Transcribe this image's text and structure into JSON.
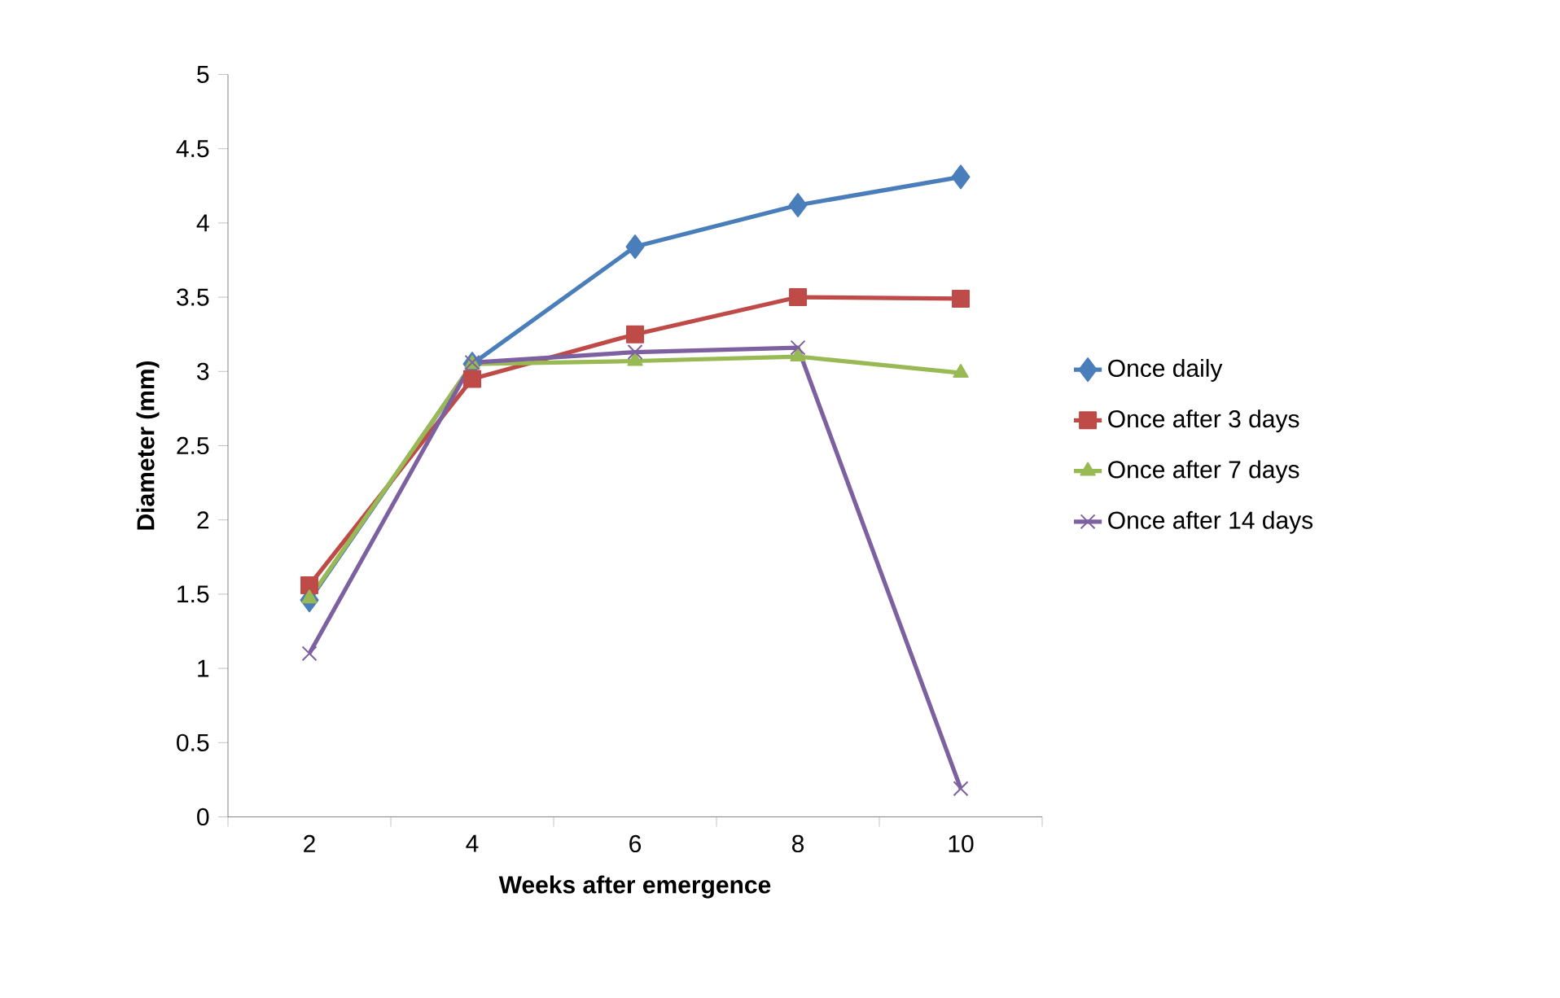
{
  "chart_data": {
    "type": "line",
    "xlabel": "Weeks after emergence",
    "ylabel": "Diameter (mm)",
    "categories": [
      "2",
      "4",
      "6",
      "8",
      "10"
    ],
    "ylim": [
      0,
      5
    ],
    "yticks": [
      0,
      0.5,
      1,
      1.5,
      2,
      2.5,
      3,
      3.5,
      4,
      4.5,
      5
    ],
    "legend": "right",
    "grid": false,
    "series": [
      {
        "name": "Once daily",
        "color": "#4a7ebb",
        "marker": "diamond",
        "values": [
          1.46,
          3.05,
          3.84,
          4.12,
          4.31
        ]
      },
      {
        "name": "Once after 3 days",
        "color": "#be4b48",
        "marker": "square",
        "values": [
          1.56,
          2.95,
          3.25,
          3.5,
          3.49
        ]
      },
      {
        "name": "Once after 7 days",
        "color": "#98b954",
        "marker": "triangle",
        "values": [
          1.47,
          3.05,
          3.07,
          3.1,
          2.99
        ]
      },
      {
        "name": "Once after 14 days",
        "color": "#7d60a0",
        "marker": "cross",
        "values": [
          1.1,
          3.06,
          3.13,
          3.16,
          0.19
        ]
      }
    ]
  }
}
